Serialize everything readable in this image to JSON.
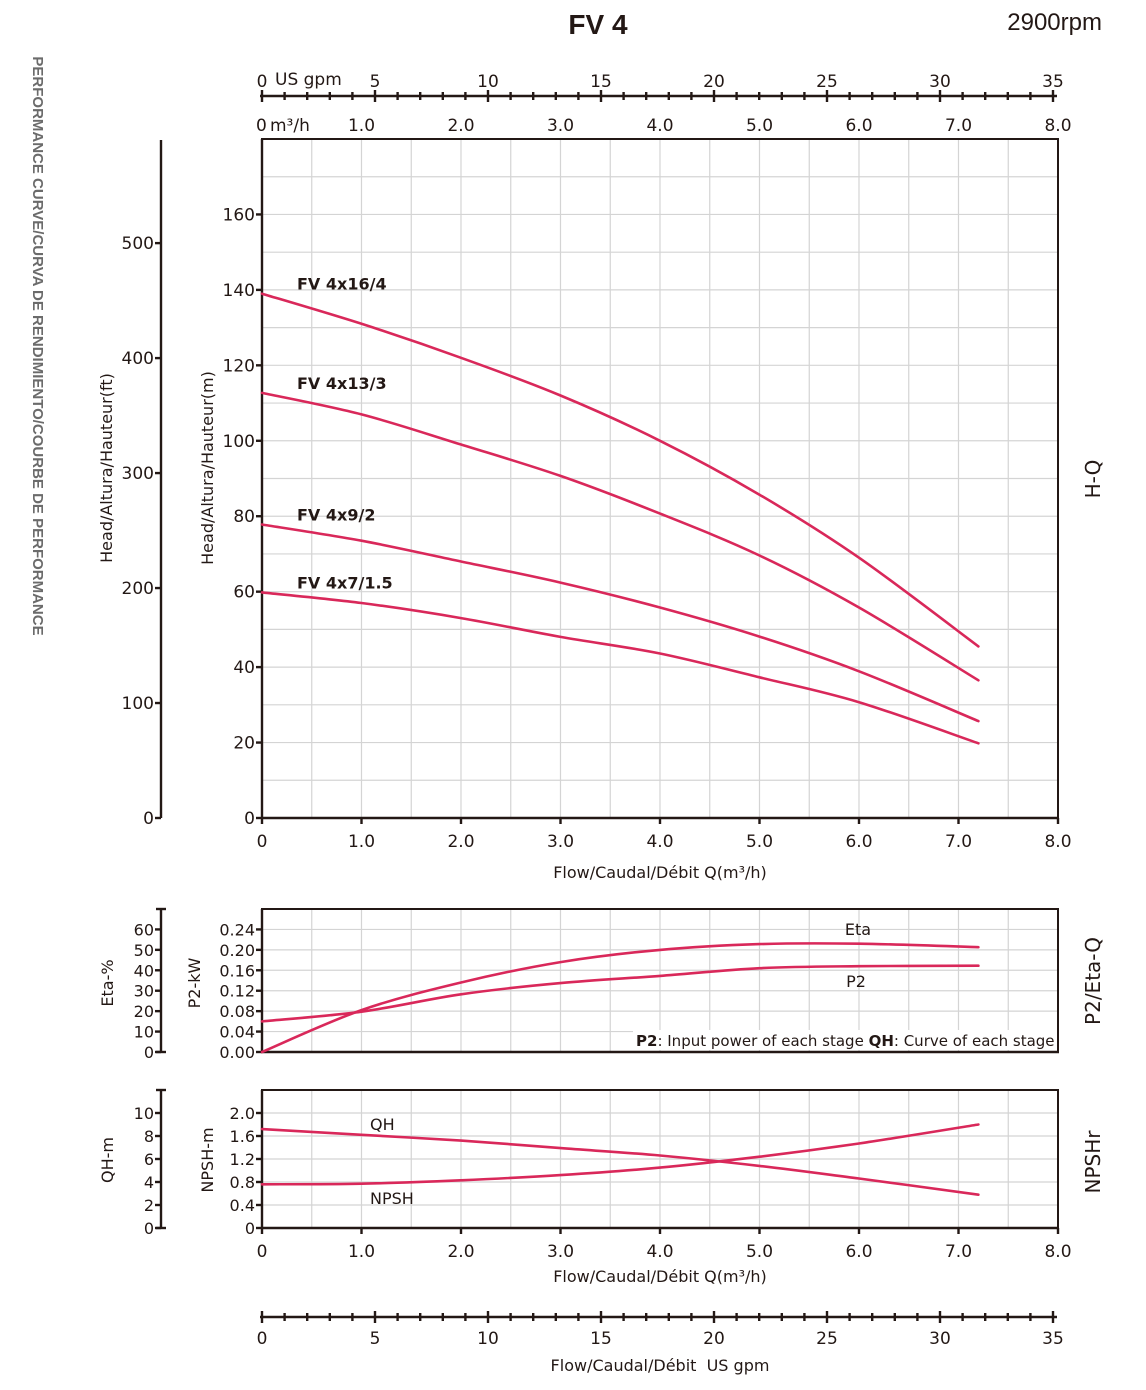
{
  "header": {
    "title": "FV 4",
    "speed": "2900rpm",
    "side_caption": "PERFORMANCE CURVE/CURVA DE RENDIMIENTO/COURBE DE PERFORMANCE"
  },
  "colors": {
    "curve": "#d9285a",
    "axis": "#231815",
    "grid": "#d4d4d4",
    "side_caption": "#6b6b6b"
  },
  "chart_data": [
    {
      "id": "hq",
      "type": "line",
      "title": "H-Q",
      "xlabel": "Flow/Caudal/Débit Q(m³/h)",
      "ylabel": "Head/Altura/Hauteur(m)",
      "ylabel_secondary": "Head/Altura/Hauteur(ft)",
      "xlim": [
        0,
        8
      ],
      "ylim": [
        0,
        180
      ],
      "ylim_secondary": [
        0,
        590
      ],
      "x_ticks": [
        "0",
        "1.0",
        "2.0",
        "3.0",
        "4.0",
        "5.0",
        "6.0",
        "7.0",
        "8.0"
      ],
      "y_ticks": [
        "0",
        "20",
        "40",
        "60",
        "80",
        "100",
        "120",
        "140",
        "160"
      ],
      "y_ticks_secondary": [
        "0",
        "100",
        "200",
        "300",
        "400",
        "500"
      ],
      "grid": true,
      "x": [
        0,
        1,
        2,
        3,
        4,
        5,
        6,
        7.2
      ],
      "series": [
        {
          "name": "FV 4x16/4",
          "values": [
            139,
            131,
            122,
            112,
            100,
            85.7,
            69,
            45.5
          ]
        },
        {
          "name": "FV 4x13/3",
          "values": [
            112.7,
            107,
            99,
            90.7,
            80.7,
            69.6,
            55.8,
            36.5
          ]
        },
        {
          "name": "FV 4x9/2",
          "values": [
            77.8,
            73.5,
            68,
            62.4,
            55.8,
            48.1,
            38.9,
            25.7
          ]
        },
        {
          "name": "FV 4x7/1.5",
          "values": [
            59.8,
            57,
            53,
            48,
            43.6,
            37.3,
            30.7,
            19.8
          ]
        }
      ]
    },
    {
      "id": "p2eta",
      "type": "line",
      "title": "P2/Eta-Q",
      "ylabel": "P2-kW",
      "ylabel_secondary": "Eta-%",
      "xlim": [
        0,
        8
      ],
      "ylim": [
        0,
        0.28
      ],
      "ylim_secondary": [
        0,
        70
      ],
      "y_ticks": [
        "0.00",
        "0.04",
        "0.08",
        "0.12",
        "0.16",
        "0.20",
        "0.24"
      ],
      "y_ticks_secondary": [
        "0",
        "10",
        "20",
        "30",
        "40",
        "50",
        "60"
      ],
      "grid": true,
      "x": [
        0,
        1,
        2,
        3,
        4,
        5,
        6,
        7.2
      ],
      "series": [
        {
          "name": "Eta",
          "unit": "%",
          "values": [
            0,
            20.5,
            34,
            44,
            50,
            52.8,
            53,
            51.3
          ]
        },
        {
          "name": "P2",
          "unit": "kW",
          "values": [
            0.06,
            0.079,
            0.113,
            0.135,
            0.149,
            0.164,
            0.168,
            0.169
          ]
        }
      ],
      "annotation": {
        "p2_key": "P2",
        "p2_text": ": Input power of each stage ",
        "qh_key": "QH",
        "qh_text": ": Curve of each stage"
      }
    },
    {
      "id": "npsh",
      "type": "line",
      "title": "NPSHr",
      "xlabel": "Flow/Caudal/Débit Q(m³/h)",
      "ylabel": "NPSH-m",
      "ylabel_secondary": "QH-m",
      "xlim": [
        0,
        8
      ],
      "ylim": [
        0,
        2.4
      ],
      "ylim_secondary": [
        0,
        12
      ],
      "x_ticks": [
        "0",
        "1.0",
        "2.0",
        "3.0",
        "4.0",
        "5.0",
        "6.0",
        "7.0",
        "8.0"
      ],
      "y_ticks": [
        "0",
        "0.4",
        "0.8",
        "1.2",
        "1.6",
        "2.0"
      ],
      "y_ticks_secondary": [
        "0",
        "2",
        "4",
        "6",
        "8",
        "10"
      ],
      "grid": true,
      "x": [
        0,
        1,
        2,
        3,
        4,
        5,
        6,
        7.2
      ],
      "series": [
        {
          "name": "QH",
          "unit": "m",
          "values": [
            8.6,
            8.1,
            7.6,
            6.95,
            6.3,
            5.4,
            4.3,
            2.9
          ]
        },
        {
          "name": "NPSH",
          "unit": "m",
          "values": [
            0.76,
            0.77,
            0.83,
            0.92,
            1.05,
            1.24,
            1.47,
            1.8
          ]
        }
      ]
    }
  ],
  "axes": {
    "top_gpm_unit": "US gpm",
    "top_m3h_unit": "m³/h",
    "gpm_ticks": [
      "0",
      "5",
      "10",
      "15",
      "20",
      "25",
      "30",
      "35"
    ],
    "gpm_max": 35,
    "m3h_top_ticks": [
      "1.0",
      "2.0",
      "3.0",
      "4.0",
      "5.0",
      "6.0",
      "7.0",
      "8.0"
    ],
    "bottom_gpm_label": "Flow/Caudal/Débit  US gpm"
  }
}
